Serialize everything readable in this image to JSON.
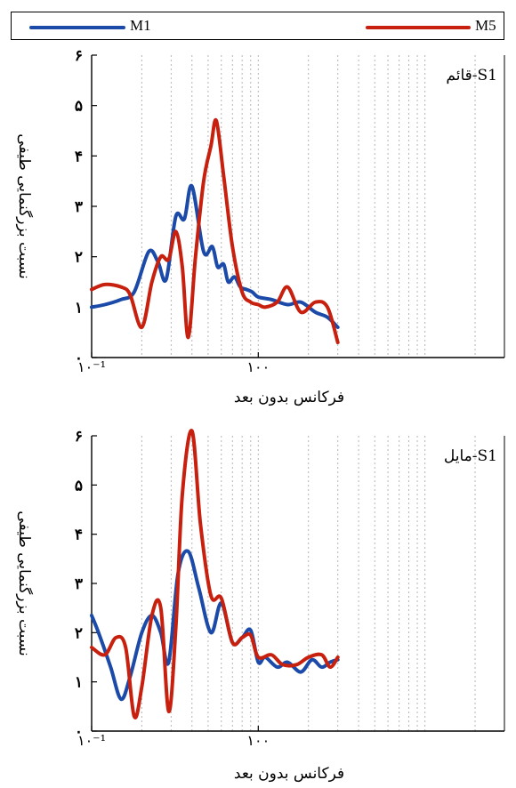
{
  "colors": {
    "M1": "#1b4aa8",
    "M5": "#c8200e"
  },
  "legend": {
    "m1_label": "M1",
    "m5_label": "M5"
  },
  "chart_data": [
    {
      "type": "line",
      "x_scale": "log",
      "xlim": [
        0.1,
        30
      ],
      "ylim": [
        0,
        6
      ],
      "grid": "vertical-dotted",
      "annotation": "قائم-S1",
      "xlabel": "فرکانس بدون بعد",
      "ylabel": "نسبت بزرگنمایی طیفی",
      "x_tick_labels": [
        "۱۰⁻¹",
        "۱۰۰"
      ],
      "y_tick_labels": [
        "۰",
        "۱",
        "۲",
        "۳",
        "۴",
        "۵",
        "۶"
      ],
      "series": [
        {
          "name": "M1",
          "x": [
            0.1,
            0.12,
            0.15,
            0.18,
            0.22,
            0.25,
            0.28,
            0.32,
            0.36,
            0.4,
            0.47,
            0.53,
            0.57,
            0.62,
            0.66,
            0.72,
            0.78,
            0.85,
            0.92,
            1.0,
            1.2,
            1.5,
            1.8,
            2.2,
            2.6,
            3.0
          ],
          "y": [
            1.0,
            1.05,
            1.15,
            1.3,
            2.1,
            1.9,
            1.55,
            2.8,
            2.75,
            3.4,
            2.1,
            2.2,
            1.8,
            1.85,
            1.5,
            1.6,
            1.4,
            1.35,
            1.3,
            1.2,
            1.15,
            1.05,
            1.1,
            0.9,
            0.8,
            0.6
          ]
        },
        {
          "name": "M5",
          "x": [
            0.1,
            0.12,
            0.15,
            0.17,
            0.2,
            0.23,
            0.26,
            0.29,
            0.32,
            0.35,
            0.38,
            0.42,
            0.47,
            0.52,
            0.56,
            0.62,
            0.7,
            0.8,
            0.9,
            1.0,
            1.1,
            1.3,
            1.5,
            1.8,
            2.2,
            2.6,
            3.0
          ],
          "y": [
            1.35,
            1.45,
            1.4,
            1.25,
            0.6,
            1.5,
            2.0,
            1.95,
            2.5,
            1.8,
            0.4,
            2.0,
            3.5,
            4.2,
            4.7,
            3.6,
            2.2,
            1.3,
            1.1,
            1.05,
            1.0,
            1.1,
            1.4,
            0.9,
            1.1,
            1.0,
            0.3
          ]
        }
      ]
    },
    {
      "type": "line",
      "x_scale": "log",
      "xlim": [
        0.1,
        30
      ],
      "ylim": [
        0,
        6
      ],
      "grid": "vertical-dotted",
      "annotation": "مایل-S1",
      "xlabel": "فرکانس بدون بعد",
      "ylabel": "نسبت بزرگنمایی طیفی",
      "x_tick_labels": [
        "۱۰⁻¹",
        "۱۰۰"
      ],
      "y_tick_labels": [
        "۰",
        "۱",
        "۲",
        "۳",
        "۴",
        "۵",
        "۶"
      ],
      "series": [
        {
          "name": "M1",
          "x": [
            0.1,
            0.11,
            0.13,
            0.15,
            0.17,
            0.2,
            0.23,
            0.26,
            0.29,
            0.33,
            0.38,
            0.44,
            0.52,
            0.6,
            0.7,
            0.8,
            0.9,
            1.0,
            1.1,
            1.3,
            1.5,
            1.8,
            2.1,
            2.4,
            2.7,
            3.0
          ],
          "y": [
            2.35,
            2.0,
            1.3,
            0.65,
            1.1,
            2.0,
            2.35,
            2.0,
            1.4,
            3.2,
            3.65,
            2.9,
            2.0,
            2.6,
            1.8,
            1.9,
            2.05,
            1.4,
            1.5,
            1.3,
            1.4,
            1.2,
            1.45,
            1.3,
            1.4,
            1.45
          ]
        },
        {
          "name": "M5",
          "x": [
            0.1,
            0.12,
            0.14,
            0.16,
            0.18,
            0.2,
            0.23,
            0.26,
            0.29,
            0.32,
            0.35,
            0.4,
            0.45,
            0.52,
            0.6,
            0.7,
            0.8,
            0.9,
            1.0,
            1.2,
            1.4,
            1.7,
            2.0,
            2.4,
            2.7,
            3.0
          ],
          "y": [
            1.7,
            1.55,
            1.9,
            1.7,
            0.3,
            0.9,
            2.35,
            2.5,
            0.4,
            2.1,
            4.8,
            6.1,
            4.2,
            2.75,
            2.7,
            1.8,
            1.9,
            1.95,
            1.5,
            1.55,
            1.35,
            1.35,
            1.5,
            1.55,
            1.3,
            1.5
          ]
        }
      ]
    }
  ]
}
